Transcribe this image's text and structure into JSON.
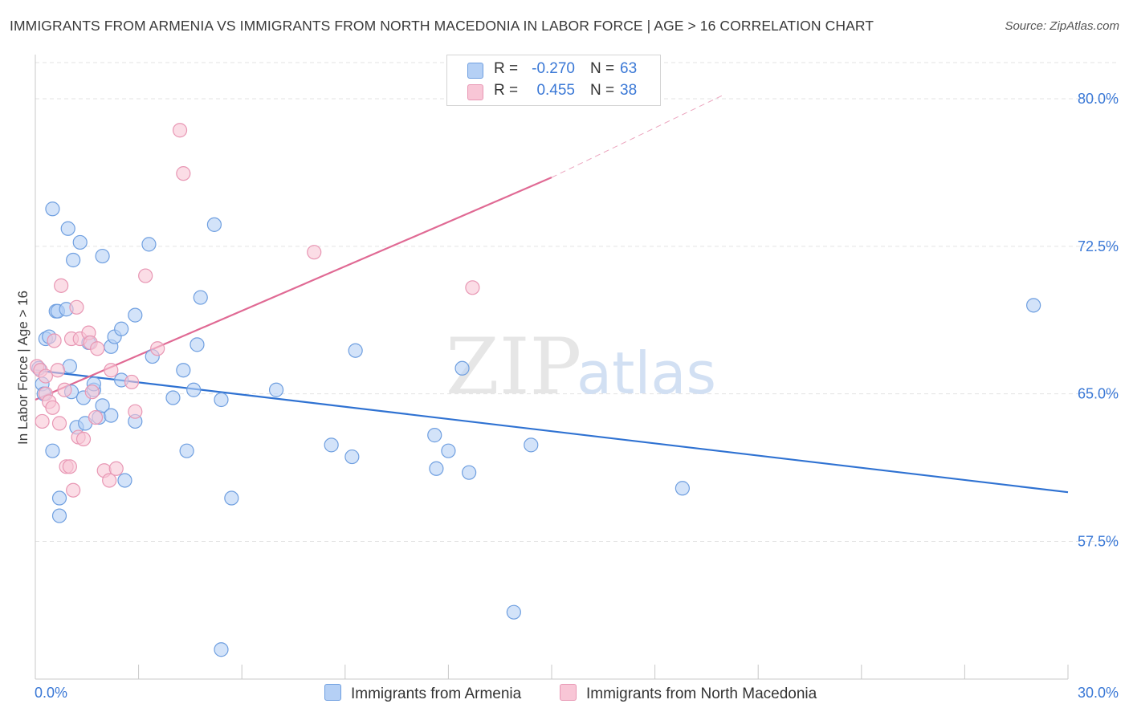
{
  "header": {
    "title": "IMMIGRANTS FROM ARMENIA VS IMMIGRANTS FROM NORTH MACEDONIA IN LABOR FORCE | AGE > 16 CORRELATION CHART",
    "source": "Source: ZipAtlas.com"
  },
  "watermark": {
    "zip": "ZIP",
    "atlas": "atlas"
  },
  "legend": {
    "armenia": {
      "r_label": "R =",
      "r_value": "-0.270",
      "n_label": "N =",
      "n_value": "63"
    },
    "macedonia": {
      "r_label": "R =",
      "r_value": "0.455",
      "n_label": "N =",
      "n_value": "38"
    }
  },
  "chart_data": {
    "type": "scatter",
    "title": "IMMIGRANTS FROM ARMENIA VS IMMIGRANTS FROM NORTH MACEDONIA IN LABOR FORCE | AGE > 16 CORRELATION CHART",
    "xlabel": "",
    "ylabel": "In Labor Force | Age > 16",
    "xlim": [
      0,
      30
    ],
    "ylim": [
      50.5,
      82
    ],
    "x_tick_labels": [
      "0.0%",
      "30.0%"
    ],
    "y_ticks": [
      57.5,
      65.0,
      72.5,
      80.0
    ],
    "y_tick_labels": [
      "57.5%",
      "65.0%",
      "72.5%",
      "80.0%"
    ],
    "grid": true,
    "colors": {
      "armenia_fill": "#b5d0f5",
      "armenia_stroke": "#6f9fe0",
      "armenia_line": "#2f72d2",
      "macedonia_fill": "#f8c6d6",
      "macedonia_stroke": "#e897b4",
      "macedonia_line": "#e06a94",
      "tick_label": "#3a78d6",
      "grid": "#e3e3e3",
      "axis": "#c8c8c8"
    },
    "series": [
      {
        "name": "Immigrants from Armenia",
        "r": -0.27,
        "n": 63,
        "trend": {
          "x0": 0,
          "y0": 66.2,
          "x1": 30,
          "y1": 60.0
        },
        "points": [
          [
            0.1,
            66.3
          ],
          [
            0.2,
            65.5
          ],
          [
            0.25,
            65.0
          ],
          [
            0.3,
            67.8
          ],
          [
            0.4,
            67.9
          ],
          [
            0.5,
            74.4
          ],
          [
            0.5,
            62.1
          ],
          [
            0.6,
            69.2
          ],
          [
            0.65,
            69.2
          ],
          [
            0.7,
            59.7
          ],
          [
            0.7,
            58.8
          ],
          [
            0.9,
            69.3
          ],
          [
            0.95,
            73.4
          ],
          [
            1.0,
            66.4
          ],
          [
            1.05,
            65.1
          ],
          [
            1.1,
            71.8
          ],
          [
            1.2,
            63.3
          ],
          [
            1.3,
            72.7
          ],
          [
            1.4,
            64.8
          ],
          [
            1.45,
            63.5
          ],
          [
            1.55,
            67.6
          ],
          [
            1.7,
            65.2
          ],
          [
            1.7,
            65.5
          ],
          [
            1.85,
            63.8
          ],
          [
            1.95,
            72.0
          ],
          [
            1.95,
            64.4
          ],
          [
            2.2,
            67.4
          ],
          [
            2.2,
            63.9
          ],
          [
            2.3,
            67.9
          ],
          [
            2.5,
            65.7
          ],
          [
            2.5,
            68.3
          ],
          [
            2.6,
            60.6
          ],
          [
            2.9,
            69.0
          ],
          [
            2.9,
            63.6
          ],
          [
            3.3,
            72.6
          ],
          [
            3.4,
            66.9
          ],
          [
            4.0,
            64.8
          ],
          [
            4.3,
            66.2
          ],
          [
            4.4,
            62.1
          ],
          [
            4.6,
            65.2
          ],
          [
            4.7,
            67.5
          ],
          [
            4.8,
            69.9
          ],
          [
            5.2,
            73.6
          ],
          [
            5.4,
            64.7
          ],
          [
            5.4,
            52.0
          ],
          [
            5.7,
            59.7
          ],
          [
            7.0,
            65.2
          ],
          [
            8.6,
            62.4
          ],
          [
            9.2,
            61.8
          ],
          [
            9.3,
            67.2
          ],
          [
            11.6,
            62.9
          ],
          [
            11.65,
            61.2
          ],
          [
            12.0,
            62.1
          ],
          [
            12.4,
            66.3
          ],
          [
            12.6,
            61.0
          ],
          [
            13.9,
            53.9
          ],
          [
            14.4,
            62.4
          ],
          [
            18.8,
            60.2
          ],
          [
            29.0,
            69.5
          ]
        ]
      },
      {
        "name": "Immigrants from North Macedonia",
        "r": 0.455,
        "n": 38,
        "trend": {
          "x0": 0,
          "y0": 64.7,
          "x1": 15,
          "y1": 76.0,
          "dash_x1": 20,
          "dash_y1": 80.2
        },
        "points": [
          [
            0.05,
            66.4
          ],
          [
            0.15,
            66.2
          ],
          [
            0.2,
            63.6
          ],
          [
            0.3,
            65.9
          ],
          [
            0.3,
            65.0
          ],
          [
            0.4,
            64.6
          ],
          [
            0.5,
            64.3
          ],
          [
            0.55,
            67.7
          ],
          [
            0.65,
            66.2
          ],
          [
            0.7,
            63.5
          ],
          [
            0.75,
            70.5
          ],
          [
            0.85,
            65.2
          ],
          [
            0.9,
            61.3
          ],
          [
            1.0,
            61.3
          ],
          [
            1.05,
            67.8
          ],
          [
            1.1,
            60.1
          ],
          [
            1.2,
            69.4
          ],
          [
            1.25,
            62.8
          ],
          [
            1.3,
            67.8
          ],
          [
            1.4,
            62.7
          ],
          [
            1.55,
            68.1
          ],
          [
            1.6,
            67.6
          ],
          [
            1.65,
            65.1
          ],
          [
            1.75,
            63.8
          ],
          [
            1.8,
            67.3
          ],
          [
            2.0,
            61.1
          ],
          [
            2.15,
            60.6
          ],
          [
            2.2,
            66.2
          ],
          [
            2.35,
            61.2
          ],
          [
            2.8,
            65.6
          ],
          [
            2.9,
            64.1
          ],
          [
            3.2,
            71.0
          ],
          [
            3.55,
            67.3
          ],
          [
            4.2,
            78.4
          ],
          [
            4.3,
            76.2
          ],
          [
            8.1,
            72.2
          ],
          [
            12.7,
            70.4
          ]
        ]
      }
    ]
  },
  "bottom_legend": {
    "armenia_label": "Immigrants from Armenia",
    "macedonia_label": "Immigrants from North Macedonia"
  }
}
